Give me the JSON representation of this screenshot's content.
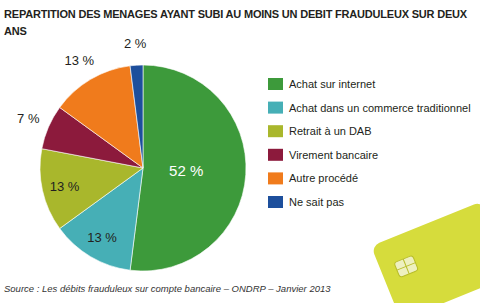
{
  "chart_data": {
    "type": "pie",
    "title": "REPARTITION DES MENAGES AYANT SUBI AU MOINS UN DEBIT FRAUDULEUX SUR DEUX ANS",
    "source": "Source : Les débits frauduleux sur compte bancaire – ONDRP – Janvier 2013",
    "categories": [
      "Achat sur internet",
      "Achat dans un commerce traditionnel",
      "Retrait à un DAB",
      "Virement bancaire",
      "Autre procédé",
      "Ne sait pas"
    ],
    "values": [
      52,
      13,
      13,
      7,
      13,
      2
    ],
    "value_labels": [
      "52 %",
      "13 %",
      "13 %",
      "7 %",
      "13 %",
      "2 %"
    ],
    "colors": [
      "#3d9a3b",
      "#46afb6",
      "#a9b72c",
      "#8c1a3c",
      "#f07b1c",
      "#1d4f9c"
    ],
    "data_labels": true,
    "legend": "right"
  }
}
